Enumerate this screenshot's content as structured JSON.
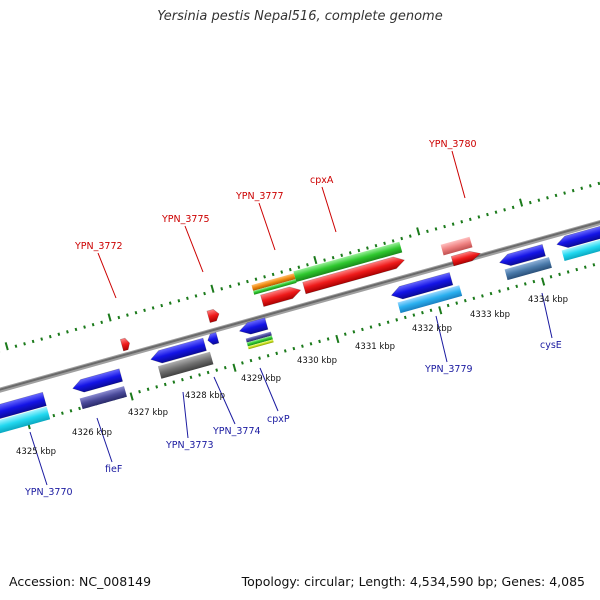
{
  "title": "Yersinia pestis Nepal516, complete genome",
  "footer": {
    "accession": "Accession: NC_008149",
    "stats": "Topology: circular; Length: 4,534,590 bp; Genes: 4,085"
  },
  "colors": {
    "backbone": "#8a8a8a",
    "tick": "#1b7a1b",
    "label_top": "#cc0000",
    "label_bottom": "#1a1aa0"
  },
  "scale": {
    "unit": "kbp",
    "kbp_labels": [
      "4325 kbp",
      "4326 kbp",
      "4327 kbp",
      "4328 kbp",
      "4329 kbp",
      "4330 kbp",
      "4331 kbp",
      "4332 kbp",
      "4333 kbp",
      "4334 kbp"
    ]
  },
  "genes_top": [
    {
      "name": "YPN_3772",
      "color": "#e81a1a"
    },
    {
      "name": "YPN_3775",
      "color": "#e81a1a"
    },
    {
      "name": "YPN_3777",
      "color": "#e81a1a"
    },
    {
      "name": "cpxA",
      "color": "#e81a1a"
    },
    {
      "name": "YPN_3780",
      "color": "#e81a1a"
    }
  ],
  "genes_bottom": [
    {
      "name": "YPN_3770",
      "color": "#1a1ae0"
    },
    {
      "name": "fieF",
      "color": "#1a1ae0"
    },
    {
      "name": "YPN_3773",
      "color": "#1a1ae0"
    },
    {
      "name": "YPN_3774",
      "color": "#1a1ae0"
    },
    {
      "name": "cpxP",
      "color": "#1a1ae0"
    },
    {
      "name": "YPN_3779",
      "color": "#1a1ae0"
    },
    {
      "name": "cysE",
      "color": "#1a1ae0"
    }
  ]
}
